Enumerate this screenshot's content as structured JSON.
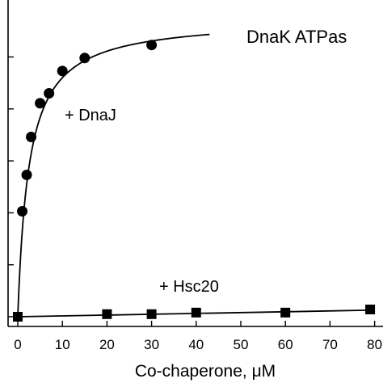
{
  "chart_data": {
    "type": "scatter",
    "title": "DnaK ATPas",
    "xlabel": "Co-chaperone, μM",
    "ylabel": "",
    "xlim": [
      -2,
      80
    ],
    "ylim": [
      0,
      5
    ],
    "x_ticks": [
      0,
      10,
      20,
      30,
      40,
      50,
      60,
      70,
      80
    ],
    "x_tick_labels": [
      "0",
      "10",
      "20",
      "30",
      "40",
      "50",
      "60",
      "70",
      "80"
    ],
    "y_ticks": [
      0,
      1,
      2,
      3,
      4,
      5
    ],
    "series": [
      {
        "label": "+ DnaJ",
        "marker": "circle",
        "points": [
          {
            "x": 1,
            "y": 2.03
          },
          {
            "x": 2,
            "y": 2.73
          },
          {
            "x": 3,
            "y": 3.46
          },
          {
            "x": 5,
            "y": 4.11
          },
          {
            "x": 7,
            "y": 4.3
          },
          {
            "x": 10,
            "y": 4.73
          },
          {
            "x": 15,
            "y": 4.98
          },
          {
            "x": 30,
            "y": 5.23
          }
        ],
        "fit": {
          "model": "hyperbolic",
          "vmax": 5.75,
          "k": 2.5,
          "x_range": [
            0,
            43
          ]
        }
      },
      {
        "label": "+ Hsc20",
        "marker": "square",
        "points": [
          {
            "x": 0,
            "y": 0.0
          },
          {
            "x": 20,
            "y": 0.05
          },
          {
            "x": 30,
            "y": 0.05
          },
          {
            "x": 40,
            "y": 0.08
          },
          {
            "x": 60,
            "y": 0.08
          },
          {
            "x": 79,
            "y": 0.14
          }
        ],
        "fit": {
          "model": "linear",
          "intercept": 0.0,
          "slope": 0.0016,
          "x_range": [
            0,
            80
          ]
        }
      }
    ]
  }
}
